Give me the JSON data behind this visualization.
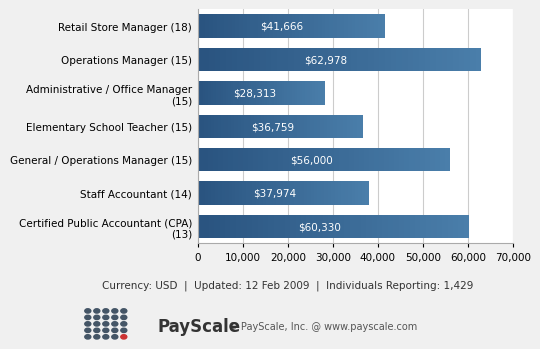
{
  "categories": [
    "Certified Public Accountant (CPA)\n(13)",
    "Staff Accountant (14)",
    "General / Operations Manager (15)",
    "Elementary School Teacher (15)",
    "Administrative / Office Manager\n(15)",
    "Operations Manager (15)",
    "Retail Store Manager (18)"
  ],
  "values": [
    60330,
    37974,
    56000,
    36759,
    28313,
    62978,
    41666
  ],
  "labels": [
    "$60,330",
    "$37,974",
    "$56,000",
    "$36,759",
    "$28,313",
    "$62,978",
    "$41,666"
  ],
  "bar_color_start": "#2a5480",
  "bar_color_end": "#4a7eaa",
  "background_color": "#f0f0f0",
  "plot_bg_color": "#ffffff",
  "xlim": [
    0,
    70000
  ],
  "xticks": [
    0,
    10000,
    20000,
    30000,
    40000,
    50000,
    60000,
    70000
  ],
  "xtick_labels": [
    "0",
    "10,000",
    "20,000",
    "30,000",
    "40,000",
    "50,000",
    "60,000",
    "70,000"
  ],
  "footer_text": "Currency: USD  |  Updated: 12 Feb 2009  |  Individuals Reporting: 1,429",
  "payscale_text": "© PayScale, Inc. @ www.payscale.com"
}
